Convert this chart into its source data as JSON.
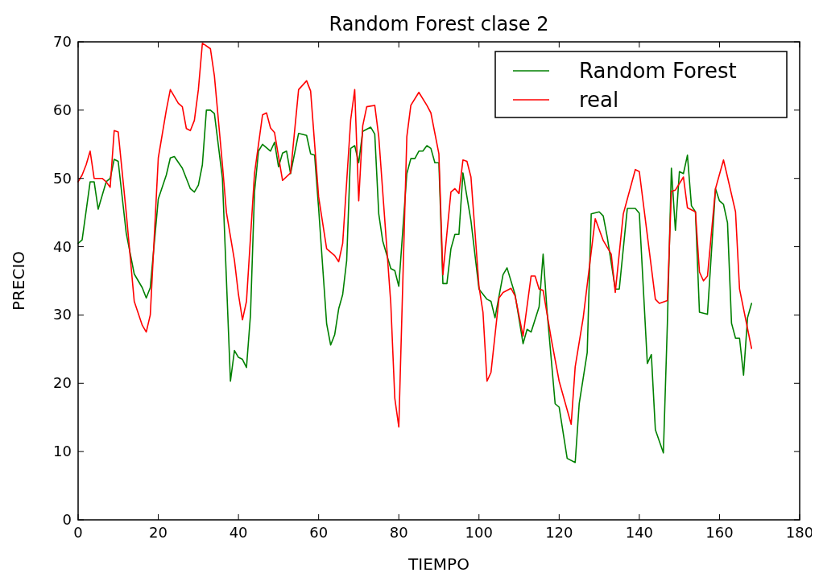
{
  "chart_data": {
    "type": "line",
    "title": "Random Forest clase 2",
    "xlabel": "TIEMPO",
    "ylabel": "PRECIO",
    "xlim": [
      0,
      180
    ],
    "xticks": [
      0,
      20,
      40,
      60,
      80,
      100,
      120,
      140,
      160,
      180
    ],
    "ylim": [
      0,
      70
    ],
    "yticks": [
      0,
      10,
      20,
      30,
      40,
      50,
      60,
      70
    ],
    "grid": false,
    "legend": "top right",
    "line_style": "solid",
    "marker": "none",
    "series": [
      {
        "name": "Random Forest",
        "color": "#008000",
        "x": [
          0,
          1,
          3,
          4,
          5,
          7,
          8,
          9,
          10,
          12,
          14,
          16,
          17,
          18,
          20,
          22,
          23,
          24,
          26,
          28,
          29,
          30,
          31,
          32,
          33,
          34,
          36,
          38,
          39,
          40,
          41,
          42,
          43,
          44,
          45,
          46,
          48,
          49,
          50,
          51,
          52,
          53,
          55,
          57,
          58,
          59,
          60,
          62,
          63,
          64,
          65,
          66,
          67,
          68,
          69,
          70,
          71,
          73,
          74,
          75,
          76,
          78,
          79,
          80,
          82,
          83,
          84,
          85,
          86,
          87,
          88,
          89,
          90,
          91,
          92,
          93,
          94,
          95,
          96,
          98,
          100,
          102,
          103,
          104,
          106,
          107,
          109,
          111,
          112,
          113,
          115,
          116,
          117,
          119,
          120,
          122,
          124,
          125,
          127,
          128,
          130,
          131,
          132,
          134,
          135,
          137,
          139,
          140,
          142,
          143,
          144,
          146,
          147,
          148,
          149,
          150,
          151,
          152,
          153,
          154,
          155,
          157,
          159,
          160,
          161,
          162,
          163,
          164,
          165,
          166,
          167,
          168
        ],
        "values": [
          40.5,
          41,
          49.5,
          49.5,
          45.5,
          49.5,
          50,
          52.8,
          52.5,
          42,
          36,
          34,
          32.5,
          34,
          47,
          50.5,
          53,
          53.2,
          51.5,
          48.5,
          48,
          49,
          52,
          60,
          60,
          59.5,
          50,
          20.3,
          24.8,
          23.8,
          23.5,
          22.3,
          30,
          48,
          54,
          55,
          54,
          55.3,
          51.7,
          53.7,
          54,
          50.7,
          56.6,
          56.3,
          53.6,
          53.4,
          45.6,
          28.7,
          25.6,
          27.1,
          30.9,
          33,
          38,
          54.4,
          54.8,
          52.3,
          56.9,
          57.5,
          56.5,
          44.8,
          40.8,
          36.8,
          36.5,
          34.2,
          50.7,
          52.9,
          52.9,
          54,
          54,
          54.8,
          54.4,
          52.3,
          52.3,
          34.6,
          34.6,
          39.7,
          41.8,
          41.8,
          50.8,
          43.8,
          33.8,
          32.3,
          32,
          29.6,
          35.9,
          36.9,
          33,
          25.8,
          27.9,
          27.5,
          31.2,
          38.9,
          30.4,
          17,
          16.5,
          9,
          8.4,
          17,
          24.5,
          44.8,
          45.1,
          44.5,
          41.4,
          33.8,
          33.8,
          45.6,
          45.6,
          44.9,
          22.9,
          24.2,
          13.2,
          9.8,
          28.8,
          51.5,
          42.4,
          51,
          50.7,
          53.4,
          46,
          45.1,
          30.4,
          30.1,
          48.5,
          46.7,
          46.2,
          43.5,
          28.8,
          26.6,
          26.6,
          21.2,
          29.6,
          31.7
        ]
      },
      {
        "name": "real",
        "color": "#ff0000",
        "x": [
          0,
          1,
          2,
          3,
          4,
          6,
          7,
          8,
          9,
          10,
          12,
          14,
          16,
          17,
          18,
          20,
          22,
          23,
          25,
          26,
          27,
          28,
          29,
          30,
          31,
          33,
          34,
          36,
          37,
          39,
          40,
          41,
          42,
          44,
          46,
          47,
          48,
          49,
          51,
          53,
          55,
          57,
          58,
          60,
          62,
          64,
          65,
          66,
          68,
          69,
          70,
          71,
          72,
          74,
          75,
          78,
          79,
          80,
          82,
          83,
          85,
          87,
          88,
          90,
          91,
          93,
          94,
          95,
          96,
          97,
          98,
          100,
          101,
          102,
          103,
          105,
          106,
          108,
          109,
          111,
          113,
          114,
          115,
          116,
          118,
          120,
          123,
          124,
          126,
          129,
          131,
          133,
          134,
          136,
          139,
          140,
          144,
          145,
          147,
          148,
          149,
          151,
          152,
          154,
          155,
          156,
          157,
          159,
          161,
          162,
          164,
          165,
          168
        ],
        "values": [
          49.5,
          50.5,
          52,
          54,
          50,
          50,
          49.5,
          48.7,
          57,
          56.8,
          45,
          32,
          28.5,
          27.5,
          30,
          53,
          60,
          63,
          61,
          60.5,
          57.3,
          57,
          58.5,
          63,
          69.8,
          69,
          65,
          52,
          45,
          38,
          33,
          29.3,
          32,
          50.7,
          59.3,
          59.6,
          57.4,
          56.7,
          49.7,
          50.8,
          63,
          64.3,
          62.8,
          47.3,
          39.7,
          38.7,
          37.8,
          40.5,
          58.6,
          63,
          46.7,
          57.7,
          60.5,
          60.7,
          56.1,
          31.7,
          17.8,
          13.6,
          56.1,
          60.7,
          62.6,
          60.7,
          59.6,
          53.6,
          35.9,
          48,
          48.5,
          47.8,
          52.7,
          52.5,
          50.2,
          34.2,
          30.4,
          20.3,
          21.6,
          32.5,
          33.3,
          33.9,
          32.8,
          26.9,
          35.7,
          35.7,
          33.8,
          33.6,
          26.6,
          20.3,
          14,
          22.4,
          29.6,
          44.1,
          40.9,
          38.9,
          33.3,
          44.8,
          51.3,
          51,
          32.3,
          31.7,
          32.1,
          48.1,
          48.3,
          50.2,
          45.7,
          45.1,
          36.3,
          35,
          35.7,
          48.5,
          52.7,
          50.2,
          45.1,
          33.8,
          25.1
        ]
      }
    ]
  }
}
